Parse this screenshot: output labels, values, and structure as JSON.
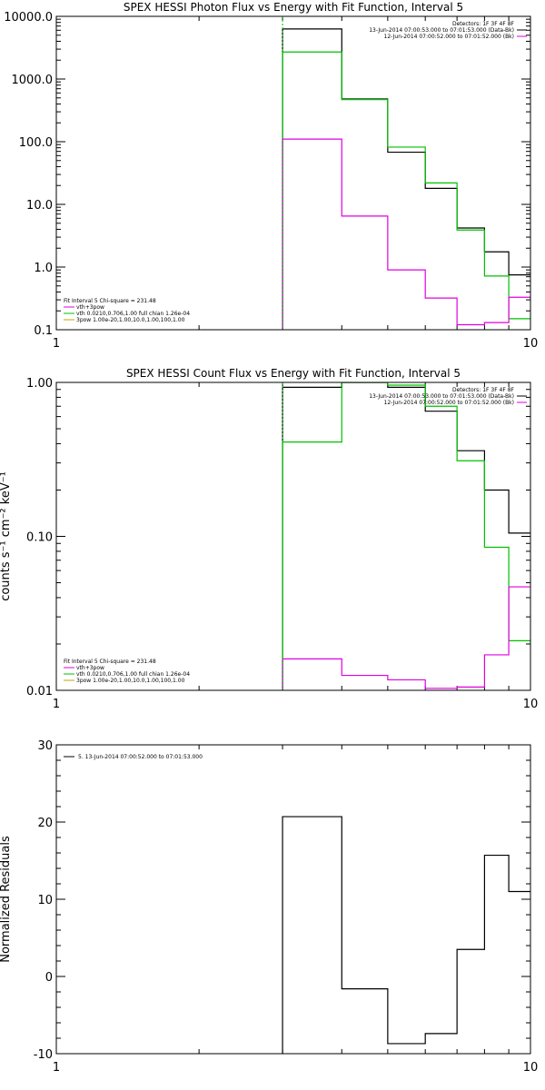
{
  "chart_data": [
    {
      "type": "line",
      "step": true,
      "title": "SPEX HESSI Photon Flux vs Energy with Fit Function, Interval 5",
      "ylabel": "",
      "xscale": "log",
      "yscale": "log",
      "xlim": [
        1,
        10
      ],
      "ylim": [
        0.1,
        10000
      ],
      "x_ticks": [
        {
          "v": 1,
          "label": "1"
        },
        {
          "v": 10,
          "label": "10"
        }
      ],
      "y_ticks": [
        {
          "v": 0.1,
          "label": "0.1"
        },
        {
          "v": 1,
          "label": "1.0"
        },
        {
          "v": 10,
          "label": "10.0"
        },
        {
          "v": 100,
          "label": "100.0"
        },
        {
          "v": 1000,
          "label": "1000.0"
        },
        {
          "v": 10000,
          "label": "10000.0"
        }
      ],
      "bin_edges": [
        3.0,
        4.0,
        5.0,
        6.0,
        7.0,
        8.0,
        9.0,
        10.0
      ],
      "series": [
        {
          "key": "data",
          "color": "#000000",
          "values": [
            6300,
            480,
            68,
            18,
            4.2,
            1.75,
            0.75
          ]
        },
        {
          "key": "vth",
          "color": "#00c000",
          "values": [
            2700,
            470,
            82,
            22,
            3.9,
            0.72,
            0.15
          ]
        },
        {
          "key": "sum",
          "color": "#e000e0",
          "values": [
            110,
            6.5,
            0.9,
            0.32,
            0.12,
            0.13,
            0.33
          ]
        }
      ],
      "vline": {
        "x": 3.0,
        "color": "#00c000"
      },
      "legend_top": [
        {
          "text": "Detectors: 1F 3F 4F 8F",
          "color": ""
        },
        {
          "text": "13-Jun-2014 07:00:53.000 to 07:01:53.000 (Data-Bk)",
          "color": "#000000"
        },
        {
          "text": "12-Jun-2014 07:00:52.000 to 07:01:52.000 (Bk)",
          "color": "#e000e0"
        }
      ],
      "legend_bottom": [
        {
          "text": "Fit Interval 5   Chi-square = 231.48",
          "color": ""
        },
        {
          "text": "vth+3pow",
          "color": "#e000e0"
        },
        {
          "text": "vth 0.0210,0.706,1.00  full chian 1.26e-04",
          "color": "#00c000"
        },
        {
          "text": "3pow 1.00e-20,1.00,10.0,1.00,100,1.00",
          "color": "#c8a000"
        }
      ]
    },
    {
      "type": "line",
      "step": true,
      "title": "SPEX HESSI Count Flux vs Energy with Fit Function, Interval 5",
      "ylabel": "counts s⁻¹ cm⁻² keV⁻¹",
      "xscale": "log",
      "yscale": "log",
      "xlim": [
        1,
        10
      ],
      "ylim": [
        0.01,
        1.0
      ],
      "x_ticks": [
        {
          "v": 1,
          "label": "1"
        },
        {
          "v": 10,
          "label": "10"
        }
      ],
      "y_ticks": [
        {
          "v": 0.01,
          "label": "0.01"
        },
        {
          "v": 0.1,
          "label": "0.10"
        },
        {
          "v": 1,
          "label": "1.00"
        }
      ],
      "bin_edges": [
        3.0,
        4.0,
        5.0,
        6.0,
        7.0,
        8.0,
        9.0,
        10.0
      ],
      "series": [
        {
          "key": "data",
          "color": "#000000",
          "values": [
            0.93,
            1.0,
            0.93,
            0.65,
            0.36,
            0.2,
            0.105
          ]
        },
        {
          "key": "vth",
          "color": "#00c000",
          "values": [
            0.41,
            1.0,
            0.96,
            0.7,
            0.31,
            0.085,
            0.021
          ]
        },
        {
          "key": "sum",
          "color": "#e000e0",
          "values": [
            0.016,
            0.0125,
            0.0117,
            0.0103,
            0.0105,
            0.017,
            0.047
          ]
        }
      ],
      "vline": {
        "x": 3.0,
        "color": "#00c000"
      },
      "legend_top": [
        {
          "text": "Detectors: 1F 3F 4F 8F",
          "color": ""
        },
        {
          "text": "13-Jun-2014 07:00:53.000 to 07:01:53.000 (Data-Bk)",
          "color": "#000000"
        },
        {
          "text": "12-Jun-2014 07:00:52.000 to 07:01:52.000 (Bk)",
          "color": "#e000e0"
        }
      ],
      "legend_bottom": [
        {
          "text": "Fit Interval 5   Chi-square = 231.48",
          "color": ""
        },
        {
          "text": "vth+3pow",
          "color": "#e000e0"
        },
        {
          "text": "vth 0.0210,0.706,1.00  full chian 1.26e-04",
          "color": "#00c000"
        },
        {
          "text": "3pow 1.00e-20,1.00,10.0,1.00,100,1.00",
          "color": "#c8a000"
        }
      ]
    },
    {
      "type": "line",
      "step": true,
      "title": "",
      "ylabel": "Normalized Residuals",
      "xscale": "log",
      "yscale": "linear",
      "xlim": [
        1,
        10
      ],
      "ylim": [
        -10,
        30
      ],
      "x_ticks": [
        {
          "v": 1,
          "label": "1"
        },
        {
          "v": 10,
          "label": "10"
        }
      ],
      "y_ticks": [
        {
          "v": -10,
          "label": "-10"
        },
        {
          "v": 0,
          "label": "0"
        },
        {
          "v": 10,
          "label": "10"
        },
        {
          "v": 20,
          "label": "20"
        },
        {
          "v": 30,
          "label": "30"
        }
      ],
      "bin_edges": [
        3.0,
        4.0,
        5.0,
        6.0,
        7.0,
        8.0,
        9.0,
        10.0
      ],
      "series": [
        {
          "key": "resid",
          "color": "#000000",
          "values": [
            20.7,
            -1.6,
            -8.7,
            -7.4,
            3.5,
            15.7,
            11.0
          ]
        }
      ],
      "legend_top": [
        {
          "text": "5. 13-Jun-2014 07:00:52.000 to 07:01:53.000",
          "color": "#000000"
        }
      ],
      "legend_bottom": []
    }
  ]
}
